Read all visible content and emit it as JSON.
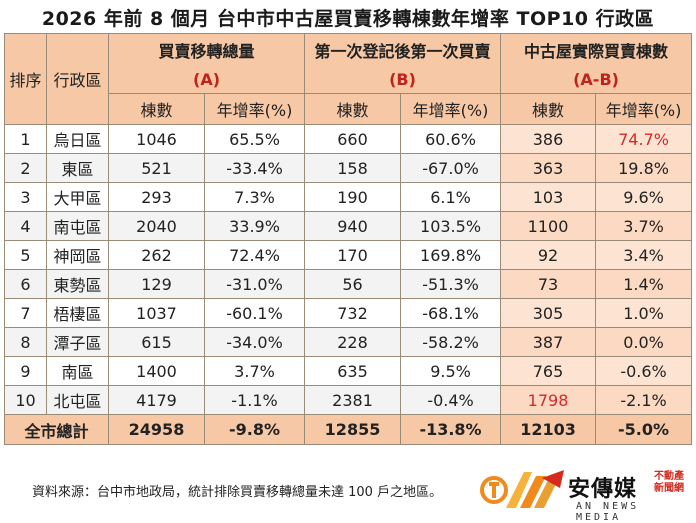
{
  "title": "2026 年前 8 個月  台中市中古屋買賣移轉棟數年增率 TOP10 行政區",
  "headers": {
    "rank": "排序",
    "district": "行政區",
    "groups": [
      {
        "title": "買賣移轉總量",
        "code": "(A)"
      },
      {
        "title": "第一次登記後第一次買賣",
        "code": "(B)"
      },
      {
        "title": "中古屋實際買賣棟數",
        "code": "(A-B)"
      }
    ],
    "count": "棟數",
    "yoy": "年增率(%)"
  },
  "rows": [
    {
      "rank": "1",
      "district": "烏日區",
      "a_count": "1046",
      "a_yoy": "65.5%",
      "b_count": "660",
      "b_yoy": "60.6%",
      "ab_count": "386",
      "ab_yoy": "74.7%"
    },
    {
      "rank": "2",
      "district": "東區",
      "a_count": "521",
      "a_yoy": "-33.4%",
      "b_count": "158",
      "b_yoy": "-67.0%",
      "ab_count": "363",
      "ab_yoy": "19.8%"
    },
    {
      "rank": "3",
      "district": "大甲區",
      "a_count": "293",
      "a_yoy": "7.3%",
      "b_count": "190",
      "b_yoy": "6.1%",
      "ab_count": "103",
      "ab_yoy": "9.6%"
    },
    {
      "rank": "4",
      "district": "南屯區",
      "a_count": "2040",
      "a_yoy": "33.9%",
      "b_count": "940",
      "b_yoy": "103.5%",
      "ab_count": "1100",
      "ab_yoy": "3.7%"
    },
    {
      "rank": "5",
      "district": "神岡區",
      "a_count": "262",
      "a_yoy": "72.4%",
      "b_count": "170",
      "b_yoy": "169.8%",
      "ab_count": "92",
      "ab_yoy": "3.4%"
    },
    {
      "rank": "6",
      "district": "東勢區",
      "a_count": "129",
      "a_yoy": "-31.0%",
      "b_count": "56",
      "b_yoy": "-51.3%",
      "ab_count": "73",
      "ab_yoy": "1.4%"
    },
    {
      "rank": "7",
      "district": "梧棲區",
      "a_count": "1037",
      "a_yoy": "-60.1%",
      "b_count": "732",
      "b_yoy": "-68.1%",
      "ab_count": "305",
      "ab_yoy": "1.0%"
    },
    {
      "rank": "8",
      "district": "潭子區",
      "a_count": "615",
      "a_yoy": "-34.0%",
      "b_count": "228",
      "b_yoy": "-58.2%",
      "ab_count": "387",
      "ab_yoy": "0.0%"
    },
    {
      "rank": "9",
      "district": "南區",
      "a_count": "1400",
      "a_yoy": "3.7%",
      "b_count": "635",
      "b_yoy": "9.5%",
      "ab_count": "765",
      "ab_yoy": "-0.6%"
    },
    {
      "rank": "10",
      "district": "北屯區",
      "a_count": "4179",
      "a_yoy": "-1.1%",
      "b_count": "2381",
      "b_yoy": "-0.4%",
      "ab_count": "1798",
      "ab_yoy": "-2.1%"
    }
  ],
  "total": {
    "label": "全市總計",
    "a_count": "24958",
    "a_yoy": "-9.8%",
    "b_count": "12855",
    "b_yoy": "-13.8%",
    "ab_count": "12103",
    "ab_yoy": "-5.0%"
  },
  "highlight_color": "#d42a2a",
  "header_color": "#f6c8a6",
  "footer_note": "資料來源：台中市地政局，統計排除買賣移轉總量未達 100 戶之地區。",
  "logo": {
    "brand": "安傳媒",
    "tag_line1": "不動產",
    "tag_line2": "新聞網",
    "sub": "AN NEWS MEDIA"
  }
}
